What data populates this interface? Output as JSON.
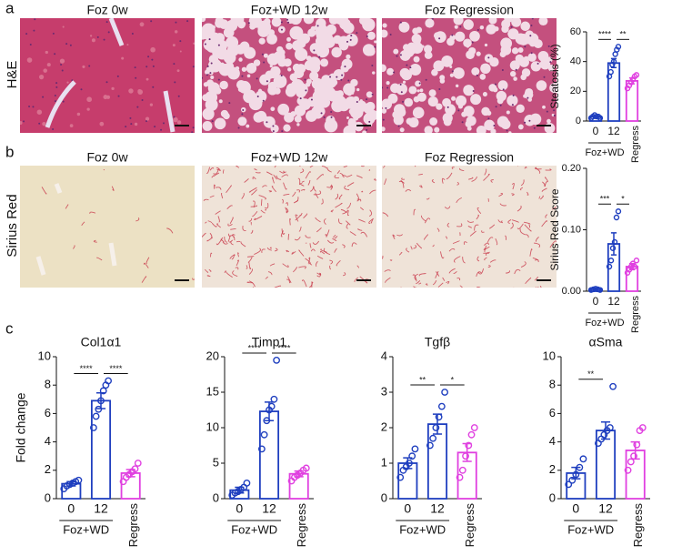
{
  "panel_labels": [
    "a",
    "b",
    "c"
  ],
  "row_labels": [
    "H&E",
    "Sirius Red"
  ],
  "image_captions": [
    [
      "Foz 0w",
      "Foz+WD 12w",
      "Foz Regression"
    ],
    [
      "Foz 0w",
      "Foz+WD 12w",
      "Foz Regression"
    ]
  ],
  "chart_data": [
    {
      "type": "bar",
      "ylabel": "Steatosis (%)",
      "categories": [
        "0",
        "12",
        "Regress"
      ],
      "group_label": "Foz+WD",
      "colors": [
        "#1f3fbf",
        "#1f3fbf",
        "#e040e0"
      ],
      "values": [
        3,
        39,
        27
      ],
      "errors": [
        0.5,
        3,
        2
      ],
      "points": [
        [
          2,
          3,
          4,
          3,
          3,
          2
        ],
        [
          30,
          33,
          38,
          40,
          45,
          48,
          50
        ],
        [
          22,
          24,
          26,
          28,
          30,
          31
        ]
      ],
      "significance": [
        {
          "from": 0,
          "to": 1,
          "label": "****"
        },
        {
          "from": 1,
          "to": 2,
          "label": "**"
        }
      ],
      "ylim": [
        0,
        60
      ],
      "yticks": [
        0,
        20,
        40,
        60
      ]
    },
    {
      "type": "bar",
      "ylabel": "Sirius Red Score",
      "categories": [
        "0",
        "12",
        "Regress"
      ],
      "group_label": "Foz+WD",
      "colors": [
        "#1f3fbf",
        "#1f3fbf",
        "#e040e0"
      ],
      "values": [
        0.003,
        0.077,
        0.04
      ],
      "errors": [
        0.001,
        0.018,
        0.005
      ],
      "points": [
        [
          0.002,
          0.003,
          0.004,
          0.003,
          0.002
        ],
        [
          0.04,
          0.05,
          0.07,
          0.08,
          0.12,
          0.13
        ],
        [
          0.03,
          0.035,
          0.04,
          0.045,
          0.04,
          0.05
        ]
      ],
      "significance": [
        {
          "from": 0,
          "to": 1,
          "label": "***"
        },
        {
          "from": 1,
          "to": 2,
          "label": "*"
        }
      ],
      "ylim": [
        0,
        0.2
      ],
      "yticks": [
        {
          "value": 0,
          "label": "0.00"
        },
        {
          "value": 0.1,
          "label": "0.10"
        },
        {
          "value": 0.2,
          "label": "0.20"
        }
      ]
    },
    {
      "type": "bar",
      "title": "Col1α1",
      "ylabel": "Fold change",
      "categories": [
        "0",
        "12",
        "Regress"
      ],
      "group_label": "Foz+WD",
      "colors": [
        "#1f3fbf",
        "#1f3fbf",
        "#e040e0"
      ],
      "values": [
        1.05,
        6.9,
        1.8
      ],
      "errors": [
        0.15,
        0.55,
        0.25
      ],
      "points": [
        [
          0.7,
          0.9,
          1.0,
          1.1,
          1.2,
          1.3
        ],
        [
          5.0,
          5.8,
          6.3,
          6.9,
          7.6,
          8.0,
          8.3
        ],
        [
          1.2,
          1.5,
          1.7,
          1.9,
          2.1,
          2.5
        ]
      ],
      "significance": [
        {
          "from": 0,
          "to": 1,
          "label": "****"
        },
        {
          "from": 1,
          "to": 2,
          "label": "****"
        }
      ],
      "ylim": [
        0,
        10
      ],
      "yticks": [
        0,
        2,
        4,
        6,
        8,
        10
      ]
    },
    {
      "type": "bar",
      "title": "Timp1",
      "categories": [
        "0",
        "12",
        "Regress"
      ],
      "group_label": "Foz+WD",
      "colors": [
        "#1f3fbf",
        "#1f3fbf",
        "#e040e0"
      ],
      "values": [
        1.2,
        12.3,
        3.5
      ],
      "errors": [
        0.4,
        1.3,
        0.4
      ],
      "points": [
        [
          0.5,
          0.8,
          1.0,
          1.3,
          1.6,
          2.2
        ],
        [
          7,
          9,
          11,
          12.5,
          13,
          14,
          19.5
        ],
        [
          2.5,
          3,
          3.3,
          3.6,
          4,
          4.3
        ]
      ],
      "significance": [
        {
          "from": 0,
          "to": 1,
          "label": "****"
        },
        {
          "from": 1,
          "to": 2,
          "label": "****"
        }
      ],
      "ylim": [
        0,
        20
      ],
      "yticks": [
        0,
        5,
        10,
        15,
        20
      ]
    },
    {
      "type": "bar",
      "title": "Tgfβ",
      "categories": [
        "0",
        "12",
        "Regress"
      ],
      "group_label": "Foz+WD",
      "colors": [
        "#1f3fbf",
        "#1f3fbf",
        "#e040e0"
      ],
      "values": [
        1.0,
        2.1,
        1.3
      ],
      "errors": [
        0.15,
        0.28,
        0.25
      ],
      "points": [
        [
          0.6,
          0.8,
          0.9,
          1.0,
          1.2,
          1.4
        ],
        [
          1.5,
          1.7,
          2.0,
          2.3,
          2.6,
          3.0
        ],
        [
          0.6,
          0.8,
          1.2,
          1.5,
          1.8,
          2.0
        ]
      ],
      "significance": [
        {
          "from": 0,
          "to": 1,
          "label": "**"
        },
        {
          "from": 1,
          "to": 2,
          "label": "*"
        }
      ],
      "ylim": [
        0,
        4
      ],
      "yticks": [
        0,
        1,
        2,
        3,
        4
      ]
    },
    {
      "type": "bar",
      "title": "αSma",
      "categories": [
        "0",
        "12",
        "Regress"
      ],
      "group_label": "Foz+WD",
      "colors": [
        "#1f3fbf",
        "#1f3fbf",
        "#e040e0"
      ],
      "values": [
        1.8,
        4.8,
        3.4
      ],
      "errors": [
        0.4,
        0.6,
        0.6
      ],
      "points": [
        [
          1.0,
          1.3,
          1.7,
          2.2,
          2.8
        ],
        [
          3.9,
          4.2,
          4.5,
          4.8,
          5.0,
          7.9
        ],
        [
          2.0,
          2.6,
          3.0,
          3.8,
          4.8,
          5.0
        ]
      ],
      "significance": [
        {
          "from": 0,
          "to": 1,
          "label": "**"
        }
      ],
      "ylim": [
        0,
        10
      ],
      "yticks": [
        0,
        2,
        4,
        6,
        8,
        10
      ]
    }
  ]
}
